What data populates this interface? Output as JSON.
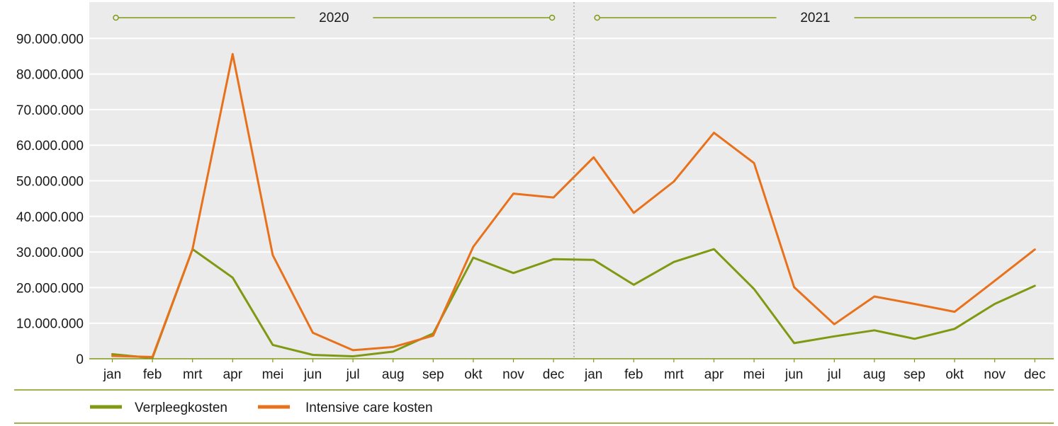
{
  "chart_data": {
    "type": "line",
    "title": "",
    "xlabel": "",
    "ylabel": "",
    "ylim": [
      0,
      90000000
    ],
    "yticks": [
      "0",
      "10.000.000",
      "20.000.000",
      "30.000.000",
      "40.000.000",
      "50.000.000",
      "60.000.000",
      "70.000.000",
      "80.000.000",
      "90.000.000"
    ],
    "ytick_values": [
      0,
      10000000,
      20000000,
      30000000,
      40000000,
      50000000,
      60000000,
      70000000,
      80000000,
      90000000
    ],
    "categories": [
      "jan",
      "feb",
      "mrt",
      "apr",
      "mei",
      "jun",
      "jul",
      "aug",
      "sep",
      "okt",
      "nov",
      "dec",
      "jan",
      "feb",
      "mrt",
      "apr",
      "mei",
      "jun",
      "jul",
      "aug",
      "sep",
      "okt",
      "nov",
      "dec"
    ],
    "year_groups": [
      {
        "label": "2020",
        "start_index": 0,
        "end_index": 11
      },
      {
        "label": "2021",
        "start_index": 12,
        "end_index": 23
      }
    ],
    "grid": true,
    "legend_position": "bottom",
    "series": [
      {
        "name": "Verpleegkosten",
        "color": "#7f9a12",
        "values": [
          1300000,
          200000,
          30800000,
          22800000,
          3900000,
          1100000,
          700000,
          2000000,
          7100000,
          28400000,
          24100000,
          28000000,
          27800000,
          20800000,
          27200000,
          30800000,
          19600000,
          4400000,
          6300000,
          8000000,
          5600000,
          8400000,
          15400000,
          20500000
        ]
      },
      {
        "name": "Intensive care kosten",
        "color": "#e8711c",
        "values": [
          800000,
          500000,
          30800000,
          85600000,
          29100000,
          7300000,
          2400000,
          3300000,
          6500000,
          31500000,
          46400000,
          45300000,
          56600000,
          41000000,
          49800000,
          63500000,
          55000000,
          20100000,
          9700000,
          17500000,
          15400000,
          13200000,
          21900000,
          30700000
        ]
      }
    ]
  }
}
